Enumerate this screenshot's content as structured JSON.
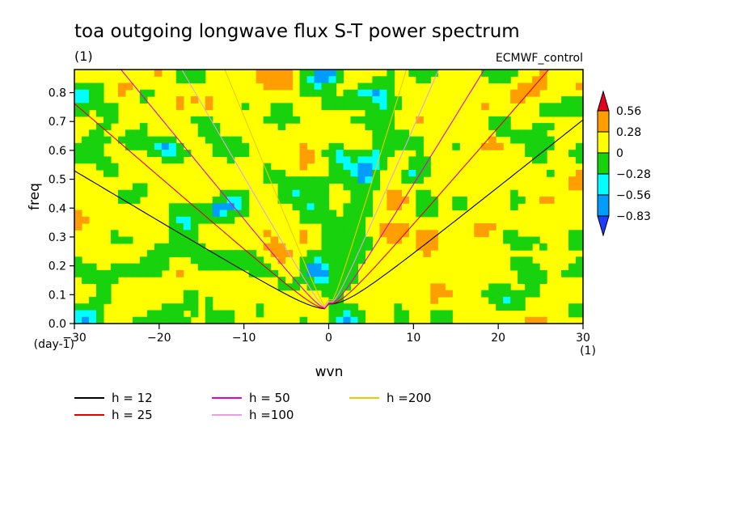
{
  "chart_data": {
    "type": "heatmap",
    "title": "toa outgoing longwave flux S-T power spectrum",
    "subtitle": "(1)",
    "source_label": "ECMWF_control",
    "xlabel": "wvn",
    "ylabel": "freq",
    "x_units": "(1)",
    "y_units": "(day-1)",
    "xlim": [
      -30,
      30
    ],
    "ylim": [
      0,
      0.88
    ],
    "xticks": [
      -30,
      -20,
      -10,
      0,
      10,
      20,
      30
    ],
    "yticks": [
      0.0,
      0.1,
      0.2,
      0.3,
      0.4,
      0.5,
      0.6,
      0.7,
      0.8
    ],
    "ytick_labels": [
      "0.0",
      "0.1",
      "0.2",
      "0.3",
      "0.4",
      "0.5",
      "0.6",
      "0.7",
      "0.8"
    ],
    "colorbar": {
      "levels": [
        "0.56",
        "0.28",
        "0",
        "-0.28",
        "-0.56",
        "-0.83"
      ],
      "colors": [
        "#e6001e",
        "#ff9e00",
        "#ffff00",
        "#17d20c",
        "#00ffff",
        "#009cff",
        "#1e3cff"
      ]
    },
    "dispersion_curves": [
      {
        "name": "h = 12",
        "color": "#000000",
        "h": 12
      },
      {
        "name": "h = 25",
        "color": "#e60000",
        "h": 25
      },
      {
        "name": "h = 50",
        "color": "#e600c8",
        "h": 50
      },
      {
        "name": "h =100",
        "color": "#e6a0e6",
        "h": 100
      },
      {
        "name": "h =200",
        "color": "#f0c800",
        "h": 200
      }
    ],
    "legend_placement": "bottom"
  }
}
